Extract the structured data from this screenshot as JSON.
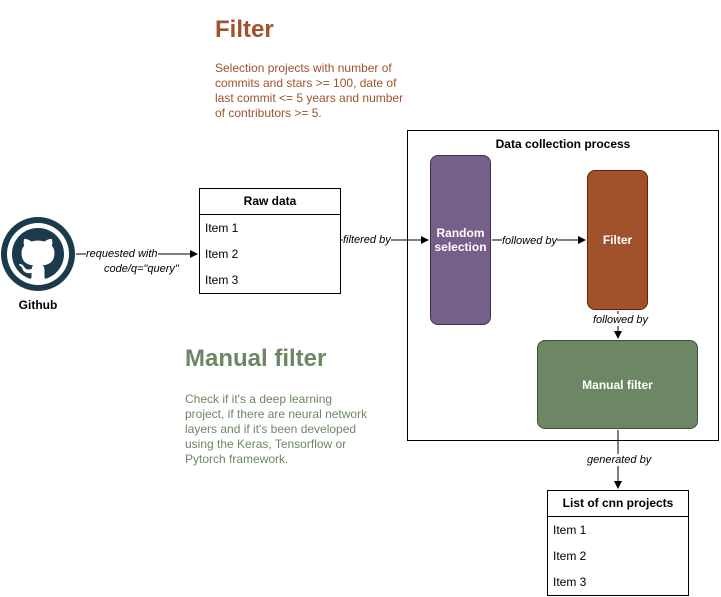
{
  "filter_note": {
    "title": "Filter",
    "description": "Selection projects with number of commits and stars >= 100, date of last commit <= 5 years and number of contributors >= 5."
  },
  "manual_note": {
    "title": "Manual filter",
    "description": "Check if it's a deep learning project, if there are neural network layers and if it's been developed using the Keras, Tensorflow or Pytorch framework."
  },
  "github": {
    "label": "Github",
    "icon": "github-icon"
  },
  "raw_data": {
    "title": "Raw data",
    "items": [
      "Item 1",
      "Item 2",
      "Item 3"
    ]
  },
  "process": {
    "title": "Data collection process",
    "random_selection": "Random selection",
    "filter": "Filter",
    "manual_filter": "Manual filter"
  },
  "output": {
    "title": "List of cnn projects",
    "items": [
      "Item 1",
      "Item 2",
      "Item 3"
    ]
  },
  "edges": {
    "requested_with": "requested with",
    "requested_query": "code/q=\"query\"",
    "filtered_by": "filtered by",
    "followed_by_1": "followed by",
    "followed_by_2": "followed by",
    "generated_by": "generated by"
  },
  "colors": {
    "filter_note": "#a0522d",
    "manual_note": "#6d8764",
    "random_selection": "#76608a",
    "filter_step": "#a0522d",
    "manual_step": "#6d8764",
    "github_icon": "#1b3a4b"
  }
}
